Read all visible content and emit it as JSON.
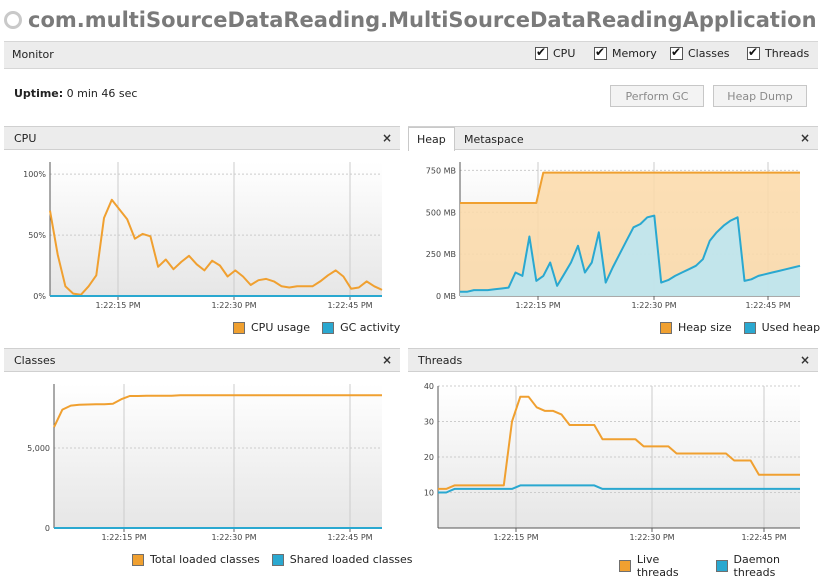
{
  "window": {
    "title": "com.multiSourceDataReading.MultiSourceDataReadingApplication ("
  },
  "monitor": {
    "label": "Monitor",
    "checkboxes": [
      {
        "label": "CPU",
        "checked": true
      },
      {
        "label": "Memory",
        "checked": true
      },
      {
        "label": "Classes",
        "checked": true
      },
      {
        "label": "Threads",
        "checked": true
      }
    ]
  },
  "uptime": {
    "label": "Uptime:",
    "value": "0 min 46 sec"
  },
  "buttons": {
    "perform_gc": "Perform GC",
    "heap_dump": "Heap Dump"
  },
  "colors": {
    "orange": "#f0a030",
    "blue": "#2aa8d0",
    "grid": "#cccccc"
  },
  "cpu_panel": {
    "title": "CPU",
    "close": "×"
  },
  "heap_panel": {
    "tabs": [
      "Heap",
      "Metaspace"
    ],
    "active_tab": "Heap",
    "close": "×"
  },
  "classes_panel": {
    "title": "Classes",
    "close": "×"
  },
  "threads_panel": {
    "title": "Threads",
    "close": "×"
  },
  "chart_data": [
    {
      "id": "cpu",
      "type": "line",
      "x_ticks": [
        "1:22:15 PM",
        "1:22:30 PM",
        "1:22:45 PM"
      ],
      "y_ticks": [
        "100%",
        "50%",
        "0%"
      ],
      "ylim": [
        0,
        110
      ],
      "legend": [
        "CPU usage",
        "GC activity"
      ],
      "series": [
        {
          "name": "CPU usage",
          "color": "orange",
          "values": [
            70,
            34,
            8,
            2,
            1,
            8,
            17,
            64,
            79,
            71,
            63,
            47,
            51,
            49,
            24,
            30,
            22,
            28,
            33,
            26,
            21,
            29,
            25,
            16,
            21,
            16,
            9,
            13,
            14,
            12,
            8,
            7,
            8,
            8,
            8,
            12,
            17,
            21,
            16,
            6,
            7,
            12,
            8,
            5
          ]
        },
        {
          "name": "GC activity",
          "color": "blue",
          "values": [
            0,
            0,
            0,
            0,
            0,
            0,
            0,
            0,
            0,
            0,
            0,
            0,
            0,
            0,
            0,
            0,
            0,
            0,
            0,
            0,
            0,
            0,
            0,
            0,
            0,
            0,
            0,
            0,
            0,
            0,
            0,
            0,
            0,
            0,
            0,
            0,
            0,
            0,
            0,
            0,
            0,
            0,
            0,
            0
          ]
        }
      ]
    },
    {
      "id": "heap",
      "type": "area",
      "x_ticks": [
        "1:22:15 PM",
        "1:22:30 PM",
        "1:22:45 PM"
      ],
      "y_ticks": [
        "750 MB",
        "500 MB",
        "250 MB",
        "0 MB"
      ],
      "ylim": [
        0,
        800
      ],
      "legend": [
        "Heap size",
        "Used heap"
      ],
      "series": [
        {
          "name": "Heap size",
          "color": "orange",
          "values": [
            555,
            555,
            555,
            555,
            555,
            555,
            555,
            555,
            555,
            555,
            555,
            555,
            737,
            737,
            737,
            737,
            737,
            737,
            737,
            737,
            737,
            737,
            737,
            737,
            737,
            737,
            737,
            737,
            737,
            737,
            737,
            737,
            737,
            737,
            737,
            737,
            737,
            737,
            737,
            737,
            737,
            737,
            737,
            737,
            737,
            737,
            737,
            737,
            737,
            737
          ]
        },
        {
          "name": "Used heap",
          "color": "blue",
          "values": [
            25,
            25,
            35,
            35,
            35,
            40,
            45,
            50,
            140,
            120,
            355,
            90,
            120,
            200,
            60,
            130,
            200,
            300,
            140,
            200,
            380,
            80,
            170,
            250,
            330,
            410,
            430,
            470,
            480,
            80,
            95,
            120,
            140,
            160,
            180,
            220,
            330,
            380,
            420,
            450,
            470,
            90,
            100,
            120,
            130,
            140,
            150,
            160,
            170,
            180
          ]
        }
      ]
    },
    {
      "id": "classes",
      "type": "line",
      "x_ticks": [
        "1:22:15 PM",
        "1:22:30 PM",
        "1:22:45 PM"
      ],
      "y_ticks": [
        "5,000",
        "0"
      ],
      "ylim": [
        0,
        9000
      ],
      "legend": [
        "Total loaded classes",
        "Shared loaded classes"
      ],
      "series": [
        {
          "name": "Total loaded classes",
          "color": "orange",
          "values": [
            6300,
            7400,
            7650,
            7700,
            7720,
            7730,
            7740,
            7760,
            8050,
            8250,
            8250,
            8260,
            8260,
            8260,
            8270,
            8300,
            8300,
            8300,
            8300,
            8300,
            8300,
            8300,
            8300,
            8300,
            8300,
            8300,
            8300,
            8300,
            8300,
            8300,
            8300,
            8300,
            8300,
            8300,
            8300,
            8300,
            8300,
            8300,
            8300,
            8300
          ]
        },
        {
          "name": "Shared loaded classes",
          "color": "blue",
          "values": [
            0,
            0,
            0,
            0,
            0,
            0,
            0,
            0,
            0,
            0,
            0,
            0,
            0,
            0,
            0,
            0,
            0,
            0,
            0,
            0,
            0,
            0,
            0,
            0,
            0,
            0,
            0,
            0,
            0,
            0,
            0,
            0,
            0,
            0,
            0,
            0,
            0,
            0,
            0,
            0
          ]
        }
      ]
    },
    {
      "id": "threads",
      "type": "line",
      "x_ticks": [
        "1:22:15 PM",
        "1:22:30 PM",
        "1:22:45 PM"
      ],
      "y_ticks": [
        "40",
        "30",
        "20",
        "10"
      ],
      "ylim": [
        0,
        40
      ],
      "legend": [
        "Live threads",
        "Daemon threads"
      ],
      "series": [
        {
          "name": "Live threads",
          "color": "orange",
          "values": [
            11,
            11,
            12,
            12,
            12,
            12,
            12,
            12,
            12,
            30,
            37,
            37,
            34,
            33,
            33,
            32,
            29,
            29,
            29,
            29,
            25,
            25,
            25,
            25,
            25,
            23,
            23,
            23,
            23,
            21,
            21,
            21,
            21,
            21,
            21,
            21,
            19,
            19,
            19,
            15,
            15,
            15,
            15,
            15,
            15
          ]
        },
        {
          "name": "Daemon threads",
          "color": "blue",
          "values": [
            10,
            10,
            11,
            11,
            11,
            11,
            11,
            11,
            11,
            11,
            12,
            12,
            12,
            12,
            12,
            12,
            12,
            12,
            12,
            12,
            11,
            11,
            11,
            11,
            11,
            11,
            11,
            11,
            11,
            11,
            11,
            11,
            11,
            11,
            11,
            11,
            11,
            11,
            11,
            11,
            11,
            11,
            11,
            11,
            11
          ]
        }
      ]
    }
  ]
}
